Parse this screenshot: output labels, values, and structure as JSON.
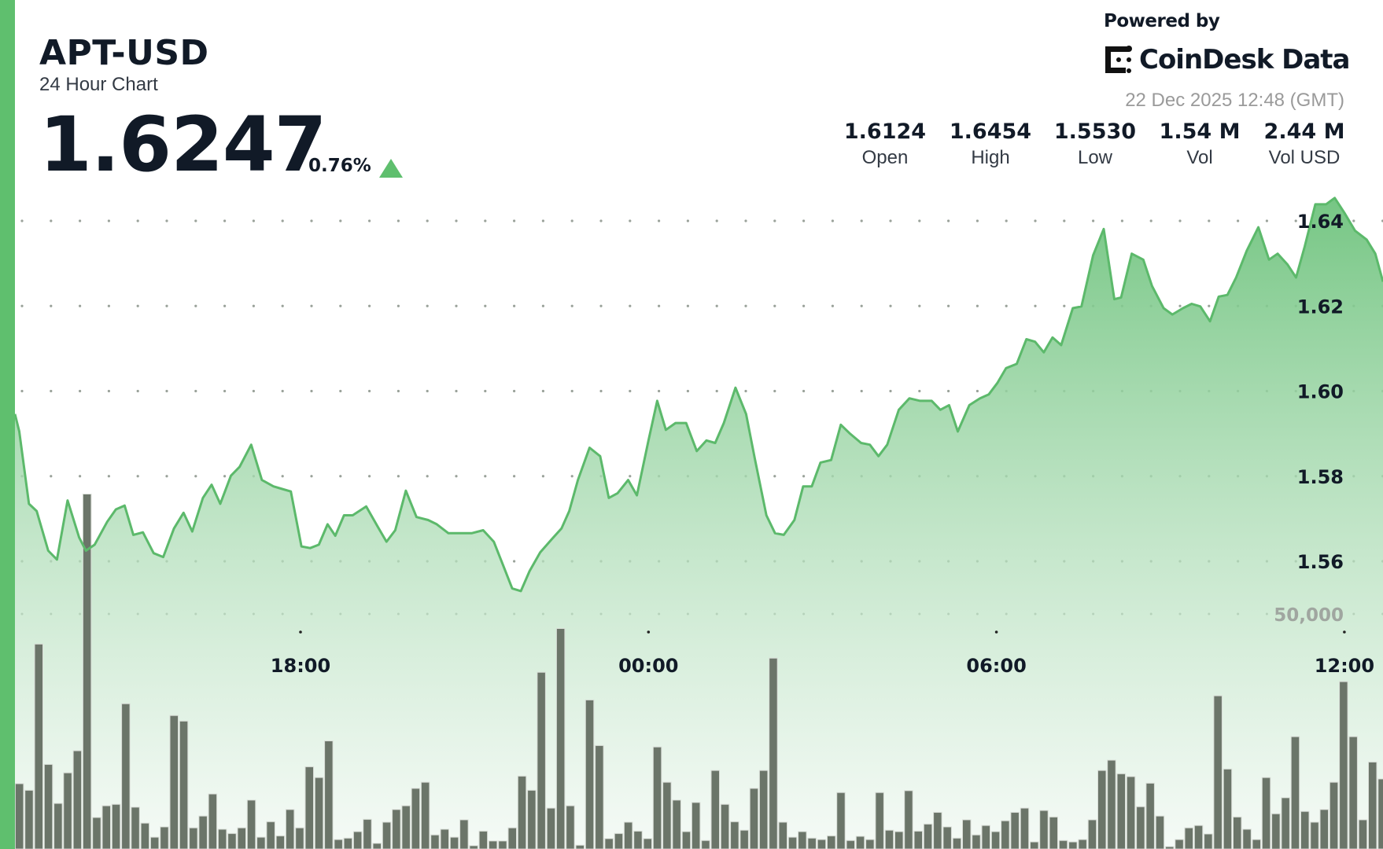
{
  "header": {
    "symbol": "APT-USD",
    "subtitle": "24 Hour Chart",
    "price": "1.6247",
    "change": "0.76%",
    "change_direction_icon": "triangle-up-icon",
    "powered_by": "Powered by",
    "brand": "CoinDesk Data",
    "timestamp": "22 Dec 2025 12:48 (GMT)"
  },
  "stats": [
    {
      "value": "1.6124",
      "label": "Open"
    },
    {
      "value": "1.6454",
      "label": "High"
    },
    {
      "value": "1.5530",
      "label": "Low"
    },
    {
      "value": "1.54 M",
      "label": "Vol"
    },
    {
      "value": "2.44 M",
      "label": "Vol USD"
    }
  ],
  "colors": {
    "accent": "#5fbf6e",
    "line": "#5cb96b",
    "volume_bar": "#6b7569",
    "text": "#111a27"
  },
  "chart_data": {
    "type": "line",
    "grid": true,
    "y_ticks": [
      "1.64",
      "1.62",
      "1.60",
      "1.58",
      "1.56"
    ],
    "y_tick_values": [
      1.64,
      1.62,
      1.6,
      1.58,
      1.56
    ],
    "x_ticks": [
      "18:00",
      "00:00",
      "06:00",
      "12:00"
    ],
    "price_series": {
      "times": [
        "13:04",
        "13:09",
        "13:19",
        "13:27",
        "13:39",
        "13:48",
        "13:59",
        "14:11",
        "14:18",
        "14:27",
        "14:40",
        "14:49",
        "14:58",
        "15:07",
        "15:17",
        "15:28",
        "15:38",
        "15:49",
        "15:59",
        "16:08",
        "16:19",
        "16:28",
        "16:37",
        "16:48",
        "16:57",
        "17:09",
        "17:20",
        "17:32",
        "17:41",
        "17:50",
        "18:01",
        "18:10",
        "18:19",
        "18:28",
        "18:36",
        "18:45",
        "18:54",
        "19:08",
        "19:20",
        "19:29",
        "19:38",
        "19:49",
        "20:00",
        "20:12",
        "20:21",
        "20:33",
        "20:44",
        "20:57",
        "21:09",
        "21:20",
        "21:29",
        "21:39",
        "21:48",
        "21:57",
        "22:08",
        "22:20",
        "22:30",
        "22:38",
        "22:47",
        "22:59",
        "23:10",
        "23:19",
        "23:28",
        "23:39",
        "23:48",
        "00:00",
        "00:09",
        "00:18",
        "00:28",
        "00:39",
        "00:50",
        "01:00",
        "01:09",
        "01:18",
        "01:30",
        "01:41",
        "01:50",
        "02:02",
        "02:11",
        "02:20",
        "02:31",
        "02:40",
        "02:49",
        "02:58",
        "03:09",
        "03:19",
        "03:28",
        "03:40",
        "03:49",
        "03:58",
        "04:07",
        "04:19",
        "04:30",
        "04:41",
        "04:53",
        "05:02",
        "05:11",
        "05:20",
        "05:32",
        "05:43",
        "05:52",
        "06:01",
        "06:10",
        "06:21",
        "06:31",
        "06:40",
        "06:49",
        "06:58",
        "07:07",
        "07:19",
        "07:28",
        "07:40",
        "07:51",
        "08:02",
        "08:09",
        "08:20",
        "08:32",
        "08:41",
        "08:53",
        "09:02",
        "09:13",
        "09:22",
        "09:31",
        "09:41",
        "09:50",
        "09:59",
        "10:08",
        "10:19",
        "10:31",
        "10:42",
        "10:51",
        "11:01",
        "11:10",
        "11:19",
        "11:30",
        "11:41",
        "11:50",
        "12:00",
        "12:11",
        "12:23",
        "12:32",
        "12:41"
      ],
      "values": [
        1.5946,
        1.5905,
        1.5735,
        1.5718,
        1.5625,
        1.5604,
        1.5743,
        1.5656,
        1.5625,
        1.5639,
        1.5693,
        1.5722,
        1.5731,
        1.5662,
        1.5668,
        1.5619,
        1.561,
        1.5677,
        1.5714,
        1.567,
        1.5749,
        1.578,
        1.5735,
        1.5801,
        1.5822,
        1.5874,
        1.5791,
        1.5776,
        1.577,
        1.5764,
        1.5635,
        1.5631,
        1.5639,
        1.5687,
        1.566,
        1.5708,
        1.5708,
        1.5729,
        1.5681,
        1.5646,
        1.5673,
        1.5766,
        1.5704,
        1.5697,
        1.5687,
        1.5666,
        1.5666,
        1.5666,
        1.5673,
        1.5646,
        1.5594,
        1.5536,
        1.553,
        1.5577,
        1.5621,
        1.5652,
        1.5677,
        1.5718,
        1.5791,
        1.5867,
        1.5847,
        1.5749,
        1.576,
        1.5791,
        1.5755,
        1.5884,
        1.5977,
        1.5909,
        1.5925,
        1.5925,
        1.5859,
        1.5884,
        1.5878,
        1.5925,
        1.6008,
        1.5946,
        1.5842,
        1.5708,
        1.5666,
        1.5662,
        1.5697,
        1.5776,
        1.5776,
        1.5832,
        1.5838,
        1.5921,
        1.5901,
        1.5878,
        1.5874,
        1.5847,
        1.5874,
        1.5956,
        1.5983,
        1.5977,
        1.5977,
        1.5956,
        1.5967,
        1.5905,
        1.5967,
        1.5983,
        1.5992,
        1.6019,
        1.6054,
        1.6064,
        1.6122,
        1.6116,
        1.6091,
        1.6126,
        1.6108,
        1.6195,
        1.6199,
        1.6319,
        1.6381,
        1.6216,
        1.622,
        1.6323,
        1.6309,
        1.6247,
        1.6195,
        1.618,
        1.6195,
        1.6205,
        1.6199,
        1.6164,
        1.6222,
        1.6226,
        1.6267,
        1.633,
        1.6385,
        1.6309,
        1.6323,
        1.6298,
        1.6267,
        1.634,
        1.6439,
        1.6439,
        1.6454,
        1.6419,
        1.6377,
        1.6356,
        1.6323,
        1.6257
      ]
    },
    "volume_series": {
      "axis_label": "50,000",
      "axis_value": 50000,
      "first_bar": "13:00",
      "bar_interval_minutes": 10,
      "values": [
        13900,
        12500,
        43600,
        18000,
        9700,
        16200,
        20900,
        75500,
        6700,
        9200,
        9500,
        30900,
        8900,
        5500,
        2500,
        4700,
        28400,
        27200,
        4500,
        7000,
        11700,
        4200,
        3300,
        4500,
        10400,
        2500,
        5800,
        2800,
        8400,
        4500,
        17500,
        15200,
        23000,
        2000,
        2300,
        3700,
        6300,
        1200,
        5700,
        8400,
        9200,
        12900,
        14200,
        3000,
        4200,
        2500,
        6200,
        700,
        3800,
        1700,
        1700,
        4500,
        15500,
        12500,
        37600,
        8700,
        46900,
        9200,
        800,
        31700,
        22000,
        2200,
        3300,
        5700,
        3800,
        2200,
        21700,
        14200,
        10400,
        3700,
        9900,
        1800,
        16700,
        9500,
        5800,
        4000,
        12900,
        16700,
        40600,
        5700,
        2500,
        3700,
        2300,
        2000,
        2800,
        12000,
        1800,
        2700,
        2000,
        12000,
        4000,
        3700,
        12400,
        3800,
        5300,
        7800,
        4700,
        2300,
        6200,
        3000,
        5000,
        3700,
        6000,
        7800,
        8700,
        1500,
        8200,
        6800,
        1800,
        1500,
        2000,
        6200,
        16700,
        18900,
        16000,
        15400,
        9000,
        14000,
        7000,
        500,
        2000,
        4500,
        5000,
        3200,
        32600,
        17000,
        6800,
        4200,
        2000,
        15200,
        7500,
        10900,
        23900,
        8000,
        5700,
        8400,
        14200,
        35600,
        23900,
        6200,
        18500,
        14900,
        6700
      ]
    }
  }
}
